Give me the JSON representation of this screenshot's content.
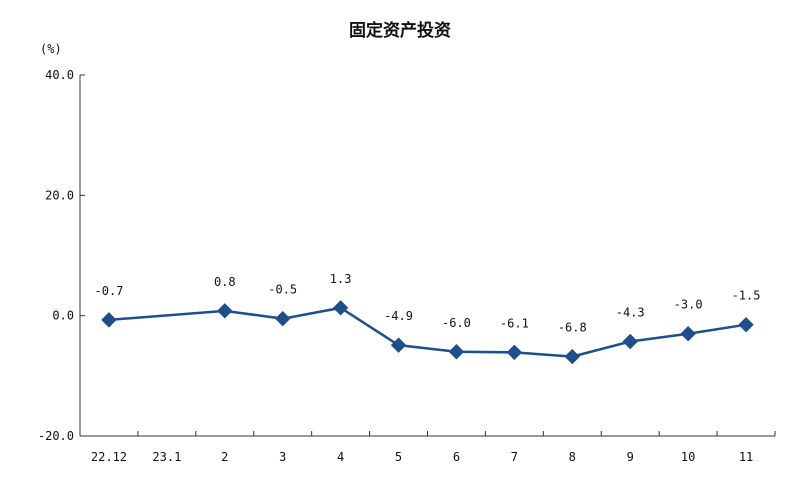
{
  "chart_data": {
    "type": "line",
    "title": "固定资产投资",
    "ylabel": "(%)",
    "categories": [
      "22.12",
      "23.1",
      "2",
      "3",
      "4",
      "5",
      "6",
      "7",
      "8",
      "9",
      "10",
      "11"
    ],
    "ylim": [
      -20.0,
      40.0
    ],
    "yticks": [
      "40.0",
      "20.0",
      "0.0",
      "-20.0"
    ],
    "series": [
      {
        "values": [
          -0.7,
          null,
          0.8,
          -0.5,
          1.3,
          -4.9,
          -6.0,
          -6.1,
          -6.8,
          -4.3,
          -3.0,
          -1.5
        ],
        "labels": [
          "-0.7",
          "",
          "0.8",
          "-0.5",
          "1.3",
          "-4.9",
          "-6.0",
          "-6.1",
          "-6.8",
          "-4.3",
          "-3.0",
          "-1.5"
        ],
        "color": "#1f4e8c",
        "marker": "diamond"
      }
    ],
    "grid": false,
    "legend": "none"
  }
}
